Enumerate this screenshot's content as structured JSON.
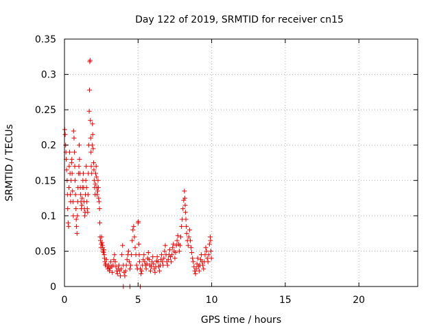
{
  "chart_data": {
    "type": "scatter",
    "title": "Day 122 of 2019, SRMTID for receiver cn15",
    "xlabel": "GPS time / hours",
    "ylabel": "SRMTID / TECUs",
    "xlim": [
      0,
      24
    ],
    "ylim": [
      0,
      0.35
    ],
    "xticks": [
      0,
      5,
      10,
      15,
      20
    ],
    "xtick_labels": [
      "0",
      "5",
      "10",
      "15",
      "20"
    ],
    "yticks": [
      0,
      0.05,
      0.1,
      0.15,
      0.2,
      0.25,
      0.3,
      0.35
    ],
    "ytick_labels": [
      "0",
      "0.05",
      "0.1",
      "0.15",
      "0.2",
      "0.25",
      "0.3",
      "0.35"
    ],
    "grid": true,
    "marker": "plus",
    "color": "#e00000",
    "series": [
      {
        "name": "cn15",
        "points": [
          [
            0.02,
            0.222
          ],
          [
            0.05,
            0.215
          ],
          [
            0.08,
            0.2
          ],
          [
            0.1,
            0.19
          ],
          [
            0.12,
            0.18
          ],
          [
            0.15,
            0.165
          ],
          [
            0.18,
            0.15
          ],
          [
            0.2,
            0.13
          ],
          [
            0.22,
            0.11
          ],
          [
            0.25,
            0.09
          ],
          [
            0.28,
            0.085
          ],
          [
            0.3,
            0.14
          ],
          [
            0.32,
            0.17
          ],
          [
            0.35,
            0.19
          ],
          [
            0.38,
            0.16
          ],
          [
            0.4,
            0.13
          ],
          [
            0.42,
            0.12
          ],
          [
            0.45,
            0.15
          ],
          [
            0.48,
            0.175
          ],
          [
            0.5,
            0.18
          ],
          [
            0.52,
            0.16
          ],
          [
            0.55,
            0.135
          ],
          [
            0.58,
            0.12
          ],
          [
            0.6,
            0.1
          ],
          [
            0.62,
            0.22
          ],
          [
            0.65,
            0.21
          ],
          [
            0.68,
            0.19
          ],
          [
            0.7,
            0.17
          ],
          [
            0.72,
            0.15
          ],
          [
            0.75,
            0.13
          ],
          [
            0.78,
            0.11
          ],
          [
            0.8,
            0.095
          ],
          [
            0.82,
            0.085
          ],
          [
            0.85,
            0.075
          ],
          [
            0.88,
            0.1
          ],
          [
            0.9,
            0.12
          ],
          [
            0.92,
            0.14
          ],
          [
            0.95,
            0.16
          ],
          [
            0.98,
            0.17
          ],
          [
            1.0,
            0.2
          ],
          [
            1.02,
            0.18
          ],
          [
            1.05,
            0.16
          ],
          [
            1.08,
            0.14
          ],
          [
            1.1,
            0.13
          ],
          [
            1.12,
            0.12
          ],
          [
            1.15,
            0.11
          ],
          [
            1.18,
            0.115
          ],
          [
            1.2,
            0.125
          ],
          [
            1.22,
            0.14
          ],
          [
            1.25,
            0.15
          ],
          [
            1.28,
            0.16
          ],
          [
            1.3,
            0.14
          ],
          [
            1.32,
            0.12
          ],
          [
            1.35,
            0.11
          ],
          [
            1.38,
            0.1
          ],
          [
            1.4,
            0.105
          ],
          [
            1.42,
            0.13
          ],
          [
            1.45,
            0.15
          ],
          [
            1.48,
            0.17
          ],
          [
            1.5,
            0.14
          ],
          [
            1.52,
            0.12
          ],
          [
            1.55,
            0.11
          ],
          [
            1.58,
            0.105
          ],
          [
            1.6,
            0.13
          ],
          [
            1.62,
            0.16
          ],
          [
            1.65,
            0.2
          ],
          [
            1.68,
            0.248
          ],
          [
            1.7,
            0.278
          ],
          [
            1.72,
            0.318
          ],
          [
            1.74,
            0.32
          ],
          [
            1.76,
            0.235
          ],
          [
            1.78,
            0.21
          ],
          [
            1.8,
            0.19
          ],
          [
            1.82,
            0.17
          ],
          [
            1.85,
            0.16
          ],
          [
            1.88,
            0.2
          ],
          [
            1.9,
            0.23
          ],
          [
            1.92,
            0.215
          ],
          [
            1.95,
            0.195
          ],
          [
            1.98,
            0.175
          ],
          [
            2.0,
            0.165
          ],
          [
            2.02,
            0.15
          ],
          [
            2.05,
            0.14
          ],
          [
            2.08,
            0.13
          ],
          [
            2.1,
            0.145
          ],
          [
            2.12,
            0.16
          ],
          [
            2.15,
            0.17
          ],
          [
            2.18,
            0.155
          ],
          [
            2.2,
            0.14
          ],
          [
            2.22,
            0.13
          ],
          [
            2.25,
            0.135
          ],
          [
            2.28,
            0.15
          ],
          [
            2.3,
            0.14
          ],
          [
            2.32,
            0.125
          ],
          [
            2.35,
            0.12
          ],
          [
            2.38,
            0.11
          ],
          [
            2.4,
            0.09
          ],
          [
            2.42,
            0.07
          ],
          [
            2.45,
            0.065
          ],
          [
            2.48,
            0.055
          ],
          [
            2.5,
            0.06
          ],
          [
            2.52,
            0.07
          ],
          [
            2.55,
            0.062
          ],
          [
            2.58,
            0.058
          ],
          [
            2.6,
            0.055
          ],
          [
            2.62,
            0.05
          ],
          [
            2.65,
            0.048
          ],
          [
            2.68,
            0.052
          ],
          [
            2.7,
            0.045
          ],
          [
            2.72,
            0.04
          ],
          [
            2.75,
            0.035
          ],
          [
            2.78,
            0.03
          ],
          [
            2.8,
            0.032
          ],
          [
            2.85,
            0.038
          ],
          [
            2.9,
            0.028
          ],
          [
            2.95,
            0.025
          ],
          [
            3.0,
            0.03
          ],
          [
            3.05,
            0.022
          ],
          [
            3.1,
            0.026
          ],
          [
            3.15,
            0.035
          ],
          [
            3.2,
            0.028
          ],
          [
            3.25,
            0.02
          ],
          [
            3.3,
            0.03
          ],
          [
            3.35,
            0.038
          ],
          [
            3.4,
            0.045
          ],
          [
            3.45,
            0.035
          ],
          [
            3.5,
            0.028
          ],
          [
            3.55,
            0.022
          ],
          [
            3.6,
            0.018
          ],
          [
            3.65,
            0.025
          ],
          [
            3.7,
            0.03
          ],
          [
            3.75,
            0.022
          ],
          [
            3.8,
            0.015
          ],
          [
            3.85,
            0.025
          ],
          [
            3.9,
            0.045
          ],
          [
            3.95,
            0.058
          ],
          [
            4.0,
            0.03
          ],
          [
            4.05,
            0.02
          ],
          [
            4.1,
            0.015
          ],
          [
            4.15,
            0.022
          ],
          [
            4.2,
            0.03
          ],
          [
            4.25,
            0.038
          ],
          [
            4.3,
            0.045
          ],
          [
            4.35,
            0.05
          ],
          [
            4.4,
            0.035
          ],
          [
            4.45,
            0.025
          ],
          [
            4.5,
            0.03
          ],
          [
            4.55,
            0.045
          ],
          [
            4.6,
            0.065
          ],
          [
            4.65,
            0.08
          ],
          [
            4.7,
            0.085
          ],
          [
            4.75,
            0.07
          ],
          [
            4.8,
            0.055
          ],
          [
            4.85,
            0.045
          ],
          [
            4.9,
            0.03
          ],
          [
            4.95,
            0.025
          ],
          [
            5.0,
            0.09
          ],
          [
            5.02,
            0.092
          ],
          [
            5.05,
            0.06
          ],
          [
            5.08,
            0.045
          ],
          [
            5.1,
            0.035
          ],
          [
            5.15,
            0.025
          ],
          [
            5.2,
            0.018
          ],
          [
            5.25,
            0.022
          ],
          [
            5.3,
            0.03
          ],
          [
            5.35,
            0.038
          ],
          [
            5.4,
            0.045
          ],
          [
            5.45,
            0.035
          ],
          [
            5.5,
            0.03
          ],
          [
            5.55,
            0.025
          ],
          [
            5.6,
            0.032
          ],
          [
            5.65,
            0.04
          ],
          [
            5.7,
            0.048
          ],
          [
            5.75,
            0.038
          ],
          [
            5.8,
            0.03
          ],
          [
            5.85,
            0.022
          ],
          [
            5.9,
            0.028
          ],
          [
            5.95,
            0.035
          ],
          [
            6.0,
            0.042
          ],
          [
            6.05,
            0.032
          ],
          [
            6.1,
            0.025
          ],
          [
            6.15,
            0.02
          ],
          [
            6.2,
            0.028
          ],
          [
            6.25,
            0.036
          ],
          [
            6.3,
            0.042
          ],
          [
            6.35,
            0.035
          ],
          [
            6.4,
            0.028
          ],
          [
            6.45,
            0.022
          ],
          [
            6.5,
            0.03
          ],
          [
            6.55,
            0.038
          ],
          [
            6.6,
            0.045
          ],
          [
            6.65,
            0.035
          ],
          [
            6.7,
            0.03
          ],
          [
            6.75,
            0.04
          ],
          [
            6.8,
            0.05
          ],
          [
            6.85,
            0.058
          ],
          [
            6.9,
            0.045
          ],
          [
            6.95,
            0.035
          ],
          [
            7.0,
            0.03
          ],
          [
            7.05,
            0.038
          ],
          [
            7.1,
            0.045
          ],
          [
            7.15,
            0.052
          ],
          [
            7.2,
            0.042
          ],
          [
            7.25,
            0.035
          ],
          [
            7.3,
            0.045
          ],
          [
            7.35,
            0.055
          ],
          [
            7.4,
            0.06
          ],
          [
            7.45,
            0.05
          ],
          [
            7.5,
            0.04
          ],
          [
            7.55,
            0.048
          ],
          [
            7.6,
            0.058
          ],
          [
            7.65,
            0.065
          ],
          [
            7.7,
            0.072
          ],
          [
            7.75,
            0.06
          ],
          [
            7.8,
            0.05
          ],
          [
            7.85,
            0.058
          ],
          [
            7.9,
            0.07
          ],
          [
            7.95,
            0.085
          ],
          [
            8.0,
            0.095
          ],
          [
            8.05,
            0.11
          ],
          [
            8.1,
            0.122
          ],
          [
            8.15,
            0.135
          ],
          [
            8.18,
            0.125
          ],
          [
            8.2,
            0.115
          ],
          [
            8.22,
            0.105
          ],
          [
            8.25,
            0.095
          ],
          [
            8.28,
            0.085
          ],
          [
            8.3,
            0.075
          ],
          [
            8.35,
            0.065
          ],
          [
            8.4,
            0.058
          ],
          [
            8.45,
            0.07
          ],
          [
            8.5,
            0.08
          ],
          [
            8.55,
            0.065
          ],
          [
            8.6,
            0.055
          ],
          [
            8.65,
            0.048
          ],
          [
            8.7,
            0.04
          ],
          [
            8.75,
            0.035
          ],
          [
            8.8,
            0.028
          ],
          [
            8.85,
            0.022
          ],
          [
            8.9,
            0.018
          ],
          [
            8.95,
            0.025
          ],
          [
            9.0,
            0.032
          ],
          [
            9.05,
            0.04
          ],
          [
            9.1,
            0.028
          ],
          [
            9.15,
            0.022
          ],
          [
            9.2,
            0.03
          ],
          [
            9.25,
            0.038
          ],
          [
            9.3,
            0.045
          ],
          [
            9.35,
            0.035
          ],
          [
            9.4,
            0.03
          ],
          [
            9.45,
            0.025
          ],
          [
            9.5,
            0.035
          ],
          [
            9.55,
            0.045
          ],
          [
            9.6,
            0.055
          ],
          [
            9.65,
            0.05
          ],
          [
            9.7,
            0.04
          ],
          [
            9.75,
            0.035
          ],
          [
            9.8,
            0.045
          ],
          [
            9.85,
            0.06
          ],
          [
            9.9,
            0.07
          ],
          [
            9.92,
            0.065
          ],
          [
            9.95,
            0.05
          ],
          [
            9.98,
            0.04
          ],
          [
            4.0,
            0.0
          ],
          [
            4.45,
            0.0
          ],
          [
            5.15,
            0.0
          ]
        ]
      }
    ]
  }
}
